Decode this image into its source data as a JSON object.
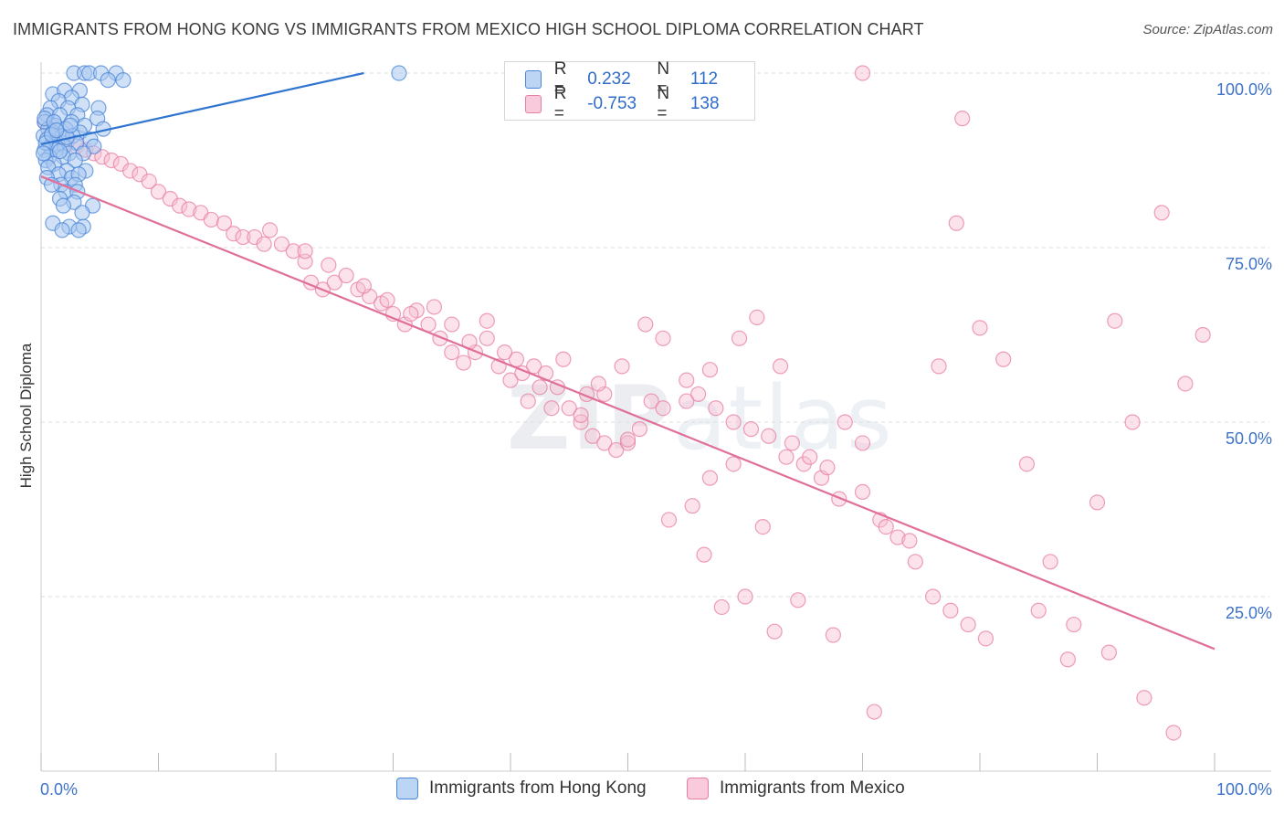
{
  "title": "IMMIGRANTS FROM HONG KONG VS IMMIGRANTS FROM MEXICO HIGH SCHOOL DIPLOMA CORRELATION CHART",
  "source": "Source: ZipAtlas.com",
  "watermark": {
    "a": "ZIP",
    "b": "atlas"
  },
  "legend": {
    "rows": [
      {
        "r_label": "R =",
        "r_value": "0.232",
        "n_label": "N =",
        "n_value": "112"
      },
      {
        "r_label": "R =",
        "r_value": "-0.753",
        "n_label": "N =",
        "n_value": "138"
      }
    ]
  },
  "colors": {
    "blue_fill": "#a9c8f0",
    "blue_stroke": "#4a86d8",
    "blue_line": "#2f74d0",
    "pink_fill": "#f7bfd2",
    "pink_stroke": "#e87ea3",
    "pink_line": "#e06f9a",
    "tick_label": "#3d72c9",
    "grid": "#dddddd"
  },
  "chart_data": {
    "type": "scatter",
    "title": "IMMIGRANTS FROM HONG KONG VS IMMIGRANTS FROM MEXICO HIGH SCHOOL DIPLOMA CORRELATION CHART",
    "xlabel": "",
    "ylabel": "High School Diploma",
    "xlim": [
      0,
      100
    ],
    "ylim": [
      0,
      100
    ],
    "x_tick_labels": [
      "0.0%",
      "100.0%"
    ],
    "y_tick_labels": [
      "100.0%",
      "75.0%",
      "50.0%",
      "25.0%"
    ],
    "y_ticks": [
      100,
      75,
      50,
      25
    ],
    "grid": true,
    "legend_placement": "bottom",
    "series": [
      {
        "name": "Immigrants from Hong Kong",
        "color": "#a9c8f0",
        "r": "0.232",
        "n": "112",
        "trend": [
          [
            0,
            89.8
          ],
          [
            27.5,
            100
          ]
        ],
        "points": [
          [
            2.8,
            100
          ],
          [
            3.7,
            100
          ],
          [
            4.1,
            100
          ],
          [
            5.1,
            100
          ],
          [
            6.4,
            100
          ],
          [
            7.0,
            99
          ],
          [
            5.7,
            99
          ],
          [
            30.5,
            100
          ],
          [
            1.0,
            97
          ],
          [
            2.0,
            97.5
          ],
          [
            3.3,
            97.5
          ],
          [
            2.6,
            96.5
          ],
          [
            3.5,
            95.5
          ],
          [
            1.5,
            96
          ],
          [
            0.8,
            95
          ],
          [
            4.9,
            95
          ],
          [
            2.3,
            95
          ],
          [
            0.5,
            94
          ],
          [
            1.6,
            94
          ],
          [
            3.1,
            94
          ],
          [
            4.8,
            93.5
          ],
          [
            0.3,
            93
          ],
          [
            2.6,
            93
          ],
          [
            1.2,
            92.5
          ],
          [
            3.7,
            92.5
          ],
          [
            0.6,
            92
          ],
          [
            2.1,
            92
          ],
          [
            5.3,
            92
          ],
          [
            1.0,
            91.5
          ],
          [
            3.3,
            91.5
          ],
          [
            0.2,
            91
          ],
          [
            1.8,
            91
          ],
          [
            2.7,
            91
          ],
          [
            4.2,
            90.5
          ],
          [
            0.5,
            90.5
          ],
          [
            1.4,
            90
          ],
          [
            3.0,
            90
          ],
          [
            0.8,
            89.5
          ],
          [
            2.0,
            89.5
          ],
          [
            4.5,
            89.5
          ],
          [
            0.3,
            89
          ],
          [
            1.3,
            89
          ],
          [
            2.4,
            88.5
          ],
          [
            3.6,
            88.5
          ],
          [
            0.7,
            88
          ],
          [
            1.9,
            88
          ],
          [
            0.4,
            87.5
          ],
          [
            2.9,
            87.5
          ],
          [
            1.1,
            87
          ],
          [
            0.6,
            86.5
          ],
          [
            2.2,
            86
          ],
          [
            3.8,
            86
          ],
          [
            1.5,
            85.5
          ],
          [
            0.5,
            85
          ],
          [
            2.6,
            85
          ],
          [
            3.2,
            85.5
          ],
          [
            1.7,
            84
          ],
          [
            2.9,
            84
          ],
          [
            0.9,
            84
          ],
          [
            2.1,
            83
          ],
          [
            3.1,
            83
          ],
          [
            1.6,
            82
          ],
          [
            2.8,
            81.5
          ],
          [
            4.4,
            81
          ],
          [
            1.9,
            81
          ],
          [
            3.5,
            80
          ],
          [
            1.0,
            78.5
          ],
          [
            2.4,
            78
          ],
          [
            3.6,
            78
          ],
          [
            1.8,
            77.5
          ],
          [
            3.2,
            77.5
          ],
          [
            0.3,
            93.5
          ],
          [
            1.1,
            93
          ],
          [
            2.2,
            90.8
          ],
          [
            0.4,
            90
          ],
          [
            1.6,
            88.8
          ],
          [
            0.9,
            91.2
          ],
          [
            2.5,
            92.5
          ],
          [
            0.2,
            88.5
          ],
          [
            1.3,
            91.8
          ]
        ]
      },
      {
        "name": "Immigrants from Mexico",
        "color": "#f7bfd2",
        "r": "-0.753",
        "n": "138",
        "trend": [
          [
            0,
            85.2
          ],
          [
            100,
            17.5
          ]
        ],
        "points": [
          [
            0.3,
            93
          ],
          [
            0.8,
            92
          ],
          [
            1.5,
            91
          ],
          [
            2.2,
            90
          ],
          [
            3.0,
            89.5
          ],
          [
            3.8,
            89
          ],
          [
            4.5,
            88.5
          ],
          [
            5.2,
            88
          ],
          [
            6.0,
            87.5
          ],
          [
            6.8,
            87
          ],
          [
            7.6,
            86
          ],
          [
            8.4,
            85.5
          ],
          [
            9.2,
            84.5
          ],
          [
            10.0,
            83
          ],
          [
            11.0,
            82
          ],
          [
            11.8,
            81
          ],
          [
            12.6,
            80.5
          ],
          [
            13.6,
            80
          ],
          [
            14.5,
            79
          ],
          [
            15.6,
            78.5
          ],
          [
            16.4,
            77
          ],
          [
            17.2,
            76.5
          ],
          [
            18.2,
            76.5
          ],
          [
            19.0,
            75.5
          ],
          [
            19.5,
            77.5
          ],
          [
            20.5,
            75.5
          ],
          [
            21.5,
            74.5
          ],
          [
            22.5,
            73
          ],
          [
            23.0,
            70
          ],
          [
            24.0,
            69
          ],
          [
            25.0,
            70
          ],
          [
            26.0,
            71
          ],
          [
            27.0,
            69
          ],
          [
            28.0,
            68
          ],
          [
            29.0,
            67
          ],
          [
            30.0,
            65.5
          ],
          [
            31.0,
            64
          ],
          [
            32.0,
            66
          ],
          [
            33.0,
            64
          ],
          [
            34.0,
            62
          ],
          [
            35.0,
            60
          ],
          [
            36.0,
            58.5
          ],
          [
            37.0,
            60
          ],
          [
            38.0,
            62
          ],
          [
            39.0,
            58
          ],
          [
            40.0,
            56
          ],
          [
            41.0,
            57
          ],
          [
            42.0,
            58
          ],
          [
            43.0,
            57
          ],
          [
            44.0,
            55
          ],
          [
            45.0,
            52
          ],
          [
            46.0,
            50
          ],
          [
            47.0,
            48
          ],
          [
            48.0,
            47
          ],
          [
            49.0,
            46
          ],
          [
            50.0,
            47
          ],
          [
            51.0,
            49
          ],
          [
            52.0,
            53
          ],
          [
            53.0,
            52
          ],
          [
            55.0,
            56
          ],
          [
            56.0,
            54
          ],
          [
            57.5,
            52
          ],
          [
            59.0,
            50
          ],
          [
            60.5,
            49
          ],
          [
            62.0,
            48
          ],
          [
            63.5,
            45
          ],
          [
            65.0,
            44
          ],
          [
            66.5,
            42
          ],
          [
            68.0,
            39
          ],
          [
            70.0,
            40
          ],
          [
            71.5,
            36
          ],
          [
            73.0,
            33.5
          ],
          [
            74.5,
            30
          ],
          [
            76.0,
            25
          ],
          [
            77.5,
            23
          ],
          [
            79.0,
            21
          ],
          [
            80.5,
            19
          ],
          [
            35.0,
            64
          ],
          [
            38.0,
            64.5
          ],
          [
            40.5,
            59
          ],
          [
            42.5,
            55
          ],
          [
            44.5,
            59
          ],
          [
            46.5,
            54
          ],
          [
            48.0,
            54
          ],
          [
            49.5,
            58
          ],
          [
            50.0,
            47.5
          ],
          [
            51.5,
            64
          ],
          [
            53.0,
            62
          ],
          [
            55.0,
            53
          ],
          [
            57.0,
            57.5
          ],
          [
            59.5,
            62
          ],
          [
            61.0,
            65
          ],
          [
            63.0,
            58
          ],
          [
            64.0,
            47
          ],
          [
            65.5,
            45
          ],
          [
            67.0,
            43.5
          ],
          [
            68.5,
            50
          ],
          [
            70.0,
            47
          ],
          [
            72.0,
            35
          ],
          [
            74.0,
            33
          ],
          [
            76.5,
            58
          ],
          [
            78.0,
            78.5
          ],
          [
            80.0,
            63.5
          ],
          [
            82.0,
            59
          ],
          [
            84.0,
            44
          ],
          [
            86.0,
            30
          ],
          [
            88.0,
            21
          ],
          [
            90.0,
            38.5
          ],
          [
            91.5,
            64.5
          ],
          [
            93.0,
            50
          ],
          [
            94.0,
            10.5
          ],
          [
            95.5,
            80
          ],
          [
            97.5,
            55.5
          ],
          [
            99.0,
            62.5
          ],
          [
            70.0,
            100
          ],
          [
            78.5,
            93.5
          ],
          [
            56.5,
            31
          ],
          [
            58.0,
            23.5
          ],
          [
            62.5,
            20
          ],
          [
            60.0,
            25
          ],
          [
            64.5,
            24.5
          ],
          [
            67.5,
            19.5
          ],
          [
            71.0,
            8.5
          ],
          [
            85.0,
            23
          ],
          [
            87.5,
            16
          ],
          [
            91.0,
            17
          ],
          [
            96.5,
            5.5
          ],
          [
            53.5,
            36
          ],
          [
            55.5,
            38
          ],
          [
            57.0,
            42
          ],
          [
            59.0,
            44
          ],
          [
            61.5,
            35
          ],
          [
            46.0,
            51
          ],
          [
            47.5,
            55.5
          ],
          [
            33.5,
            66.5
          ],
          [
            36.5,
            61.5
          ],
          [
            39.5,
            60
          ],
          [
            41.5,
            53
          ],
          [
            43.5,
            52
          ],
          [
            31.5,
            65.5
          ],
          [
            29.5,
            67.5
          ],
          [
            27.5,
            69.5
          ],
          [
            22.5,
            74.5
          ],
          [
            24.5,
            72.5
          ]
        ]
      }
    ]
  },
  "bottom_legend": [
    "Immigrants from Hong Kong",
    "Immigrants from Mexico"
  ]
}
